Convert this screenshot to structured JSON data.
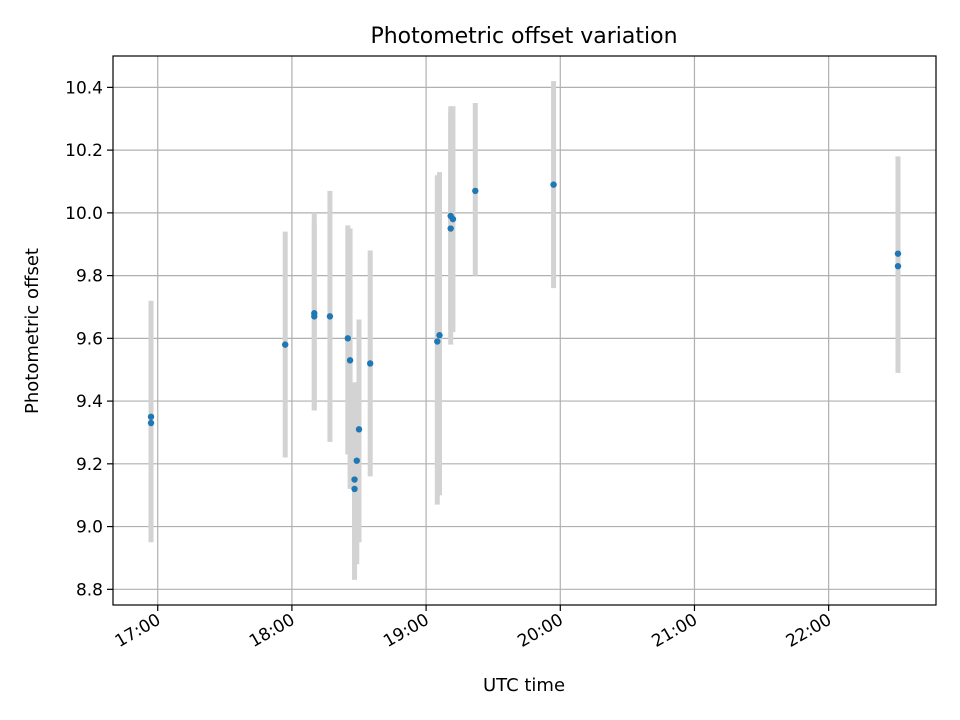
{
  "chart_data": {
    "type": "scatter",
    "title": "Photometric offset variation",
    "xlabel": "UTC time",
    "ylabel": "Photometric offset",
    "grid": true,
    "xlim": [
      "16:40",
      "22:48"
    ],
    "ylim": [
      8.75,
      10.5
    ],
    "xticks": [
      "17:00",
      "18:00",
      "19:00",
      "20:00",
      "21:00",
      "22:00"
    ],
    "yticks": [
      "8.8",
      "9.0",
      "9.2",
      "9.4",
      "9.6",
      "9.8",
      "10.0",
      "10.2",
      "10.4"
    ],
    "colors": {
      "point": "#1f77b4",
      "errorbar": "#d3d3d3",
      "grid": "#b0b0b0"
    },
    "points": [
      {
        "x": "16:57",
        "y": 9.35,
        "ylow": 9.0,
        "yhigh": 9.72
      },
      {
        "x": "16:57",
        "y": 9.33,
        "ylow": 8.95,
        "yhigh": 9.71
      },
      {
        "x": "17:57",
        "y": 9.58,
        "ylow": 9.22,
        "yhigh": 9.94
      },
      {
        "x": "18:10",
        "y": 9.68,
        "ylow": 9.37,
        "yhigh": 10.0
      },
      {
        "x": "18:10",
        "y": 9.67,
        "ylow": 9.37,
        "yhigh": 9.97
      },
      {
        "x": "18:17",
        "y": 9.67,
        "ylow": 9.27,
        "yhigh": 10.07
      },
      {
        "x": "18:25",
        "y": 9.6,
        "ylow": 9.23,
        "yhigh": 9.96
      },
      {
        "x": "18:26",
        "y": 9.53,
        "ylow": 9.12,
        "yhigh": 9.95
      },
      {
        "x": "18:28",
        "y": 9.15,
        "ylow": 8.84,
        "yhigh": 9.46
      },
      {
        "x": "18:28",
        "y": 9.12,
        "ylow": 8.83,
        "yhigh": 9.43
      },
      {
        "x": "18:29",
        "y": 9.21,
        "ylow": 8.88,
        "yhigh": 9.45
      },
      {
        "x": "18:30",
        "y": 9.31,
        "ylow": 8.95,
        "yhigh": 9.66
      },
      {
        "x": "18:35",
        "y": 9.52,
        "ylow": 9.16,
        "yhigh": 9.88
      },
      {
        "x": "19:05",
        "y": 9.59,
        "ylow": 9.07,
        "yhigh": 10.12
      },
      {
        "x": "19:06",
        "y": 9.61,
        "ylow": 9.1,
        "yhigh": 10.13
      },
      {
        "x": "19:11",
        "y": 9.95,
        "ylow": 9.58,
        "yhigh": 10.32
      },
      {
        "x": "19:11",
        "y": 9.99,
        "ylow": 9.63,
        "yhigh": 10.34
      },
      {
        "x": "19:12",
        "y": 9.98,
        "ylow": 9.62,
        "yhigh": 10.34
      },
      {
        "x": "19:22",
        "y": 10.07,
        "ylow": 9.8,
        "yhigh": 10.35
      },
      {
        "x": "19:57",
        "y": 10.09,
        "ylow": 9.76,
        "yhigh": 10.42
      },
      {
        "x": "22:31",
        "y": 9.87,
        "ylow": 9.56,
        "yhigh": 10.18
      },
      {
        "x": "22:31",
        "y": 9.83,
        "ylow": 9.49,
        "yhigh": 10.17
      }
    ]
  }
}
